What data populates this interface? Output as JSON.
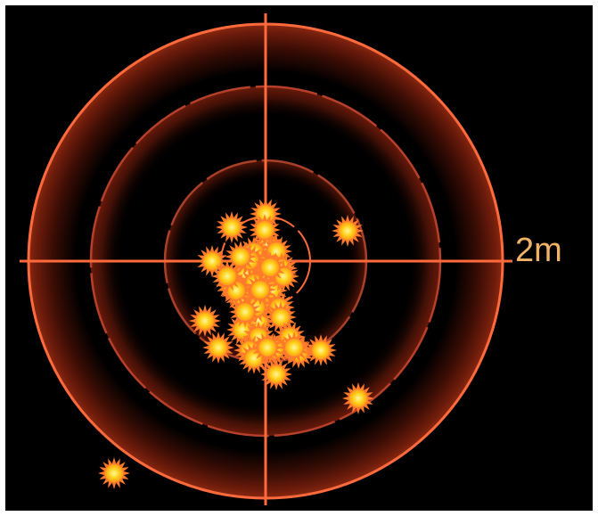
{
  "scale_label": "2m",
  "colors": {
    "background": "#000000",
    "frame": "#ffffff",
    "ring": "#ff6a3d",
    "ring_glow": "#7a1e0c",
    "crosshair": "#ff6a3d",
    "label": "#f2b266",
    "impact_core": "#ffe04a",
    "impact_rays": "#ff7a2a"
  },
  "icons": {
    "impact": "starburst-impact-icon"
  },
  "impact_count": 44
}
